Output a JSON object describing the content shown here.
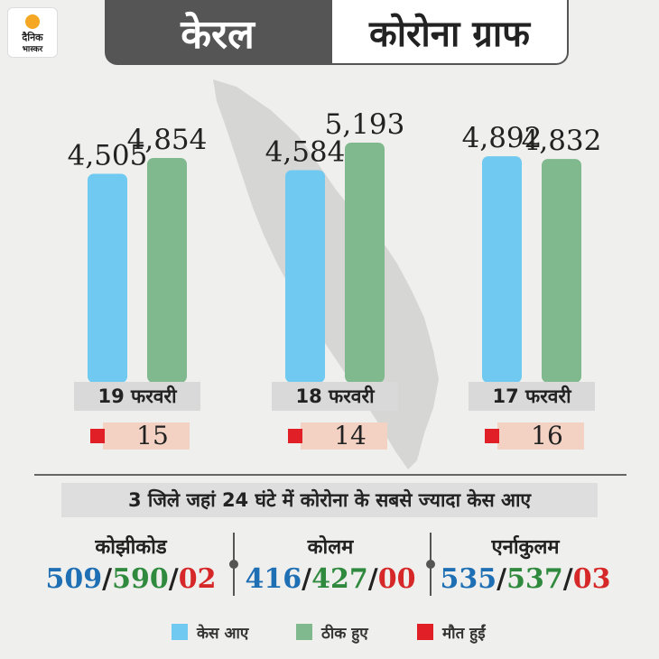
{
  "logo": {
    "line1": "दैनिक",
    "line2": "भास्कर"
  },
  "header": {
    "left": "केरल",
    "right": "कोरोना ग्राफ"
  },
  "colors": {
    "cases": "#6fc9f0",
    "recovered": "#7fb98d",
    "deaths": "#e01f26",
    "map": "#d6d6d4"
  },
  "chart_data": {
    "type": "bar",
    "categories": [
      "19 फरवरी",
      "18 फरवरी",
      "17 फरवरी"
    ],
    "series": [
      {
        "name": "केस आए",
        "values": [
          4505,
          4584,
          4892
        ],
        "labels": [
          "4,505",
          "4,584",
          "4,892"
        ]
      },
      {
        "name": "ठीक हुए",
        "values": [
          4854,
          5193,
          4832
        ],
        "labels": [
          "4,854",
          "5,193",
          "4,832"
        ]
      }
    ],
    "deaths": [
      "15",
      "14",
      "16"
    ],
    "ylim": [
      0,
      5193
    ],
    "grid": false,
    "legend_position": "bottom"
  },
  "subtitle": "3 जिले जहां 24 घंटे में कोरोना के सबसे ज्यादा केस आए",
  "districts": [
    {
      "name": "कोझीकोड",
      "cases": "509",
      "recovered": "590",
      "deaths": "02"
    },
    {
      "name": "कोलम",
      "cases": "416",
      "recovered": "427",
      "deaths": "00"
    },
    {
      "name": "एर्नाकुलम",
      "cases": "535",
      "recovered": "537",
      "deaths": "03"
    }
  ],
  "legend": [
    {
      "label": "केस आए",
      "color": "#6fc9f0"
    },
    {
      "label": "ठीक हुए",
      "color": "#7fb98d"
    },
    {
      "label": "मौत हुईं",
      "color": "#e01f26"
    }
  ]
}
